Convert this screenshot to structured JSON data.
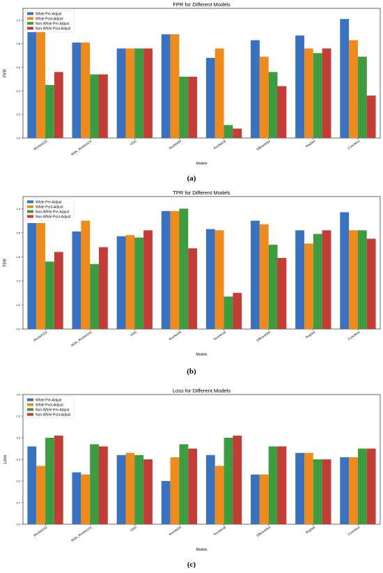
{
  "captions": [
    "(a)",
    "(b)",
    "(c)"
  ],
  "chart_data": [
    {
      "type": "bar",
      "title": "FPR for Different Models",
      "xlabel": "Models",
      "ylabel": "FPR",
      "ylim": [
        0,
        1.1
      ],
      "yticks": [
        "0.0",
        "0.2",
        "0.4",
        "0.6",
        "0.8",
        "1.0"
      ],
      "legend_position": "upper-left",
      "categories": [
        "ResNet152",
        "Wide_ResNet101",
        "VGG",
        "ResNet50",
        "ResNet18",
        "EfficientNet",
        "RegNet",
        "ConvNext"
      ],
      "series": [
        {
          "name": "White Pre-Adjust",
          "color": "#3a72c0",
          "values": [
            0.9,
            0.81,
            0.76,
            0.88,
            0.68,
            0.83,
            0.87,
            1.01
          ]
        },
        {
          "name": "White Post-Adjust",
          "color": "#ef8a1d",
          "values": [
            0.9,
            0.81,
            0.76,
            0.88,
            0.76,
            0.69,
            0.76,
            0.83
          ]
        },
        {
          "name": "Non-White Pre-Adjust",
          "color": "#3f9b3f",
          "values": [
            0.45,
            0.54,
            0.76,
            0.52,
            0.11,
            0.56,
            0.72,
            0.69
          ]
        },
        {
          "name": "Non-White Post-Adjust",
          "color": "#c43c36",
          "values": [
            0.56,
            0.54,
            0.76,
            0.52,
            0.08,
            0.44,
            0.76,
            0.36
          ]
        }
      ]
    },
    {
      "type": "bar",
      "title": "TPR for Different Models",
      "xlabel": "Models",
      "ylabel": "TPR",
      "ylim": [
        0,
        1.1
      ],
      "yticks": [
        "0.0",
        "0.2",
        "0.4",
        "0.6",
        "0.8",
        "1.0"
      ],
      "legend_position": "upper-left",
      "categories": [
        "ResNet152",
        "Wide_ResNet101",
        "VGG",
        "ResNet50",
        "ResNet18",
        "EfficientNet",
        "RegNet",
        "ConvNext"
      ],
      "series": [
        {
          "name": "White Pre-Adjust",
          "color": "#3a72c0",
          "values": [
            0.88,
            0.81,
            0.77,
            0.98,
            0.83,
            0.9,
            0.82,
            0.97
          ]
        },
        {
          "name": "White Post-Adjust",
          "color": "#ef8a1d",
          "values": [
            0.88,
            0.9,
            0.78,
            0.98,
            0.82,
            0.87,
            0.71,
            0.82
          ]
        },
        {
          "name": "Non-White Pre-Adjust",
          "color": "#3f9b3f",
          "values": [
            0.56,
            0.54,
            0.76,
            1.0,
            0.27,
            0.7,
            0.79,
            0.82
          ]
        },
        {
          "name": "Non-White Post-Adjust",
          "color": "#c43c36",
          "values": [
            0.64,
            0.68,
            0.82,
            0.67,
            0.3,
            0.59,
            0.82,
            0.75
          ]
        }
      ]
    },
    {
      "type": "bar",
      "title": "Loss for Different Models",
      "xlabel": "Models",
      "ylabel": "Loss",
      "ylim": [
        0,
        0.6
      ],
      "yticks": [
        "0.0",
        "0.1",
        "0.2",
        "0.3",
        "0.4",
        "0.5",
        "0.6"
      ],
      "legend_position": "upper-left",
      "categories": [
        "ResNet152",
        "Wide_ResNet101",
        "VGG",
        "ResNet50",
        "ResNet18",
        "EfficientNet",
        "RegNet",
        "ConvNext"
      ],
      "series": [
        {
          "name": "White Pre-Adjust",
          "color": "#3a72c0",
          "values": [
            0.36,
            0.24,
            0.32,
            0.2,
            0.32,
            0.23,
            0.33,
            0.31
          ]
        },
        {
          "name": "White Post-Adjust",
          "color": "#ef8a1d",
          "values": [
            0.27,
            0.23,
            0.33,
            0.31,
            0.27,
            0.23,
            0.33,
            0.31
          ]
        },
        {
          "name": "Non-White Pre-Adjust",
          "color": "#3f9b3f",
          "values": [
            0.4,
            0.37,
            0.32,
            0.37,
            0.4,
            0.36,
            0.3,
            0.35
          ]
        },
        {
          "name": "Non-White Post-Adjust",
          "color": "#c43c36",
          "values": [
            0.41,
            0.36,
            0.3,
            0.35,
            0.41,
            0.36,
            0.3,
            0.35
          ]
        }
      ]
    }
  ]
}
